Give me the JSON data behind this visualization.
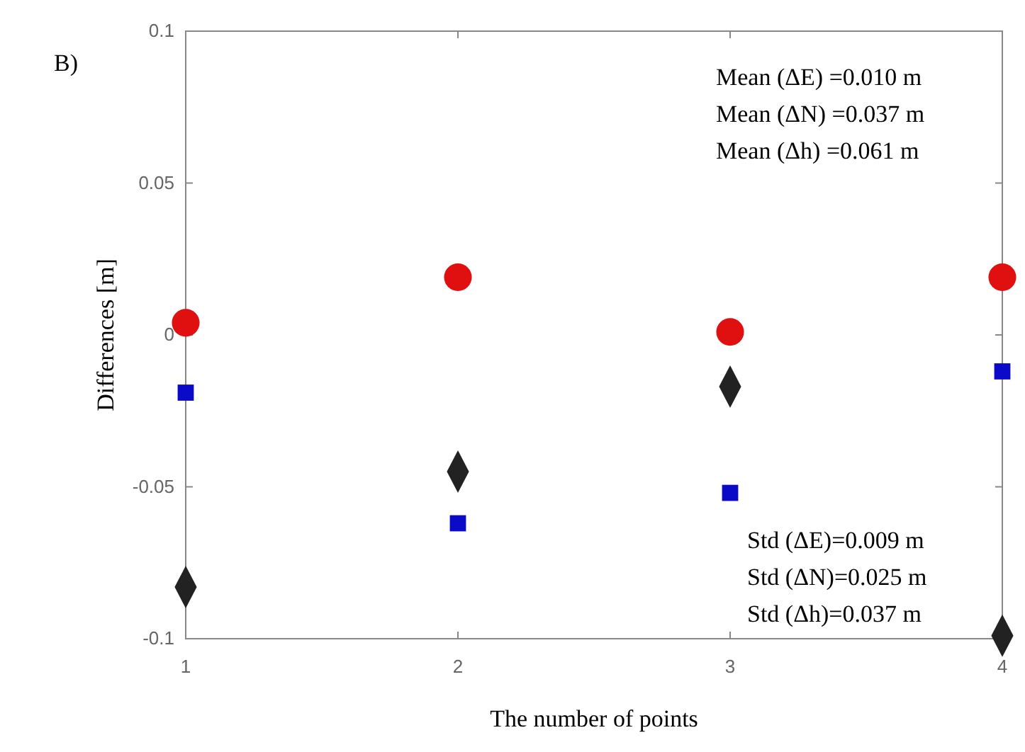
{
  "chart_data": {
    "type": "scatter",
    "xlabel": "The number of points",
    "ylabel": "Differences [m]",
    "x": [
      1,
      2,
      3,
      4
    ],
    "xlim": [
      1,
      4
    ],
    "xticks": [
      1,
      2,
      3,
      4
    ],
    "ylim": [
      -0.1,
      0.1
    ],
    "yticks": [
      -0.1,
      -0.05,
      0,
      0.05,
      0.1
    ],
    "grid": false,
    "series": [
      {
        "color": "#e01010",
        "marker": "circle",
        "values": [
          0.004,
          0.019,
          0.001,
          0.019
        ]
      },
      {
        "color": "#0a0ac8",
        "marker": "square",
        "values": [
          -0.019,
          -0.062,
          -0.052,
          -0.012
        ]
      },
      {
        "color": "#222222",
        "marker": "diamond",
        "values": [
          -0.083,
          -0.045,
          -0.017,
          -0.099
        ]
      }
    ],
    "annotations": [
      "B)",
      "Mean (ΔE) =0.010 m",
      "Mean (ΔN) =0.037 m",
      "Mean (Δh) =0.061 m",
      "Std (ΔE)=0.009 m",
      "Std (ΔN)=0.025 m",
      "Std (Δh)=0.037 m"
    ]
  }
}
